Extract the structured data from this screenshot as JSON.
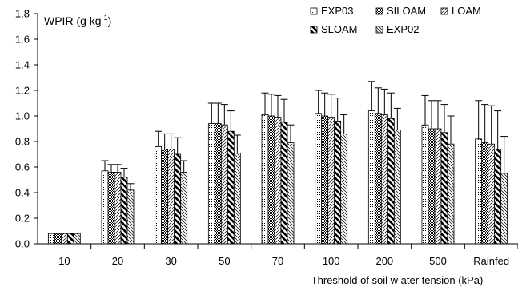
{
  "chart_data": {
    "type": "bar",
    "ylabel": {
      "text": "WPIR (g kg",
      "sup": "-1",
      "close": ")"
    },
    "xlabel": "Threshold of soil w ater tension (kPa)",
    "ylim": [
      0,
      1.8
    ],
    "yticks": [
      "0.0",
      "0.2",
      "0.4",
      "0.6",
      "0.8",
      "1.0",
      "1.2",
      "1.4",
      "1.6",
      "1.8"
    ],
    "categories": [
      "10",
      "20",
      "30",
      "50",
      "70",
      "100",
      "200",
      "500",
      "Rainfed"
    ],
    "legend_position": "top-right",
    "series": [
      {
        "name": "EXP03",
        "pattern": "dots",
        "values": [
          0.08,
          0.57,
          0.76,
          0.94,
          1.01,
          1.02,
          1.04,
          0.93,
          0.82
        ],
        "errors": [
          0,
          0.08,
          0.12,
          0.16,
          0.17,
          0.18,
          0.23,
          0.23,
          0.3
        ]
      },
      {
        "name": "SILOAM",
        "pattern": "dense",
        "values": [
          0.08,
          0.56,
          0.74,
          0.94,
          1.0,
          1.0,
          1.02,
          0.9,
          0.79
        ],
        "errors": [
          0,
          0.06,
          0.12,
          0.16,
          0.17,
          0.18,
          0.2,
          0.22,
          0.3
        ]
      },
      {
        "name": "LOAM",
        "pattern": "hatch",
        "values": [
          0.08,
          0.56,
          0.74,
          0.93,
          0.99,
          0.99,
          1.01,
          0.9,
          0.78
        ],
        "errors": [
          0,
          0.06,
          0.12,
          0.16,
          0.17,
          0.18,
          0.2,
          0.22,
          0.3
        ]
      },
      {
        "name": "SLOAM",
        "pattern": "bold-diagonal",
        "values": [
          0.08,
          0.52,
          0.7,
          0.88,
          0.95,
          0.96,
          0.98,
          0.87,
          0.74
        ],
        "errors": [
          0,
          0.07,
          0.13,
          0.16,
          0.18,
          0.18,
          0.2,
          0.22,
          0.3
        ]
      },
      {
        "name": "EXP02",
        "pattern": "thin-diagonal",
        "values": [
          0.08,
          0.42,
          0.56,
          0.71,
          0.79,
          0.86,
          0.89,
          0.78,
          0.55
        ],
        "errors": [
          0,
          0.05,
          0.09,
          0.14,
          0.14,
          0.15,
          0.17,
          0.22,
          0.29
        ]
      }
    ],
    "colors": {
      "fill": "#ffffff",
      "stroke": "#000000",
      "pattern": "#000000"
    }
  }
}
